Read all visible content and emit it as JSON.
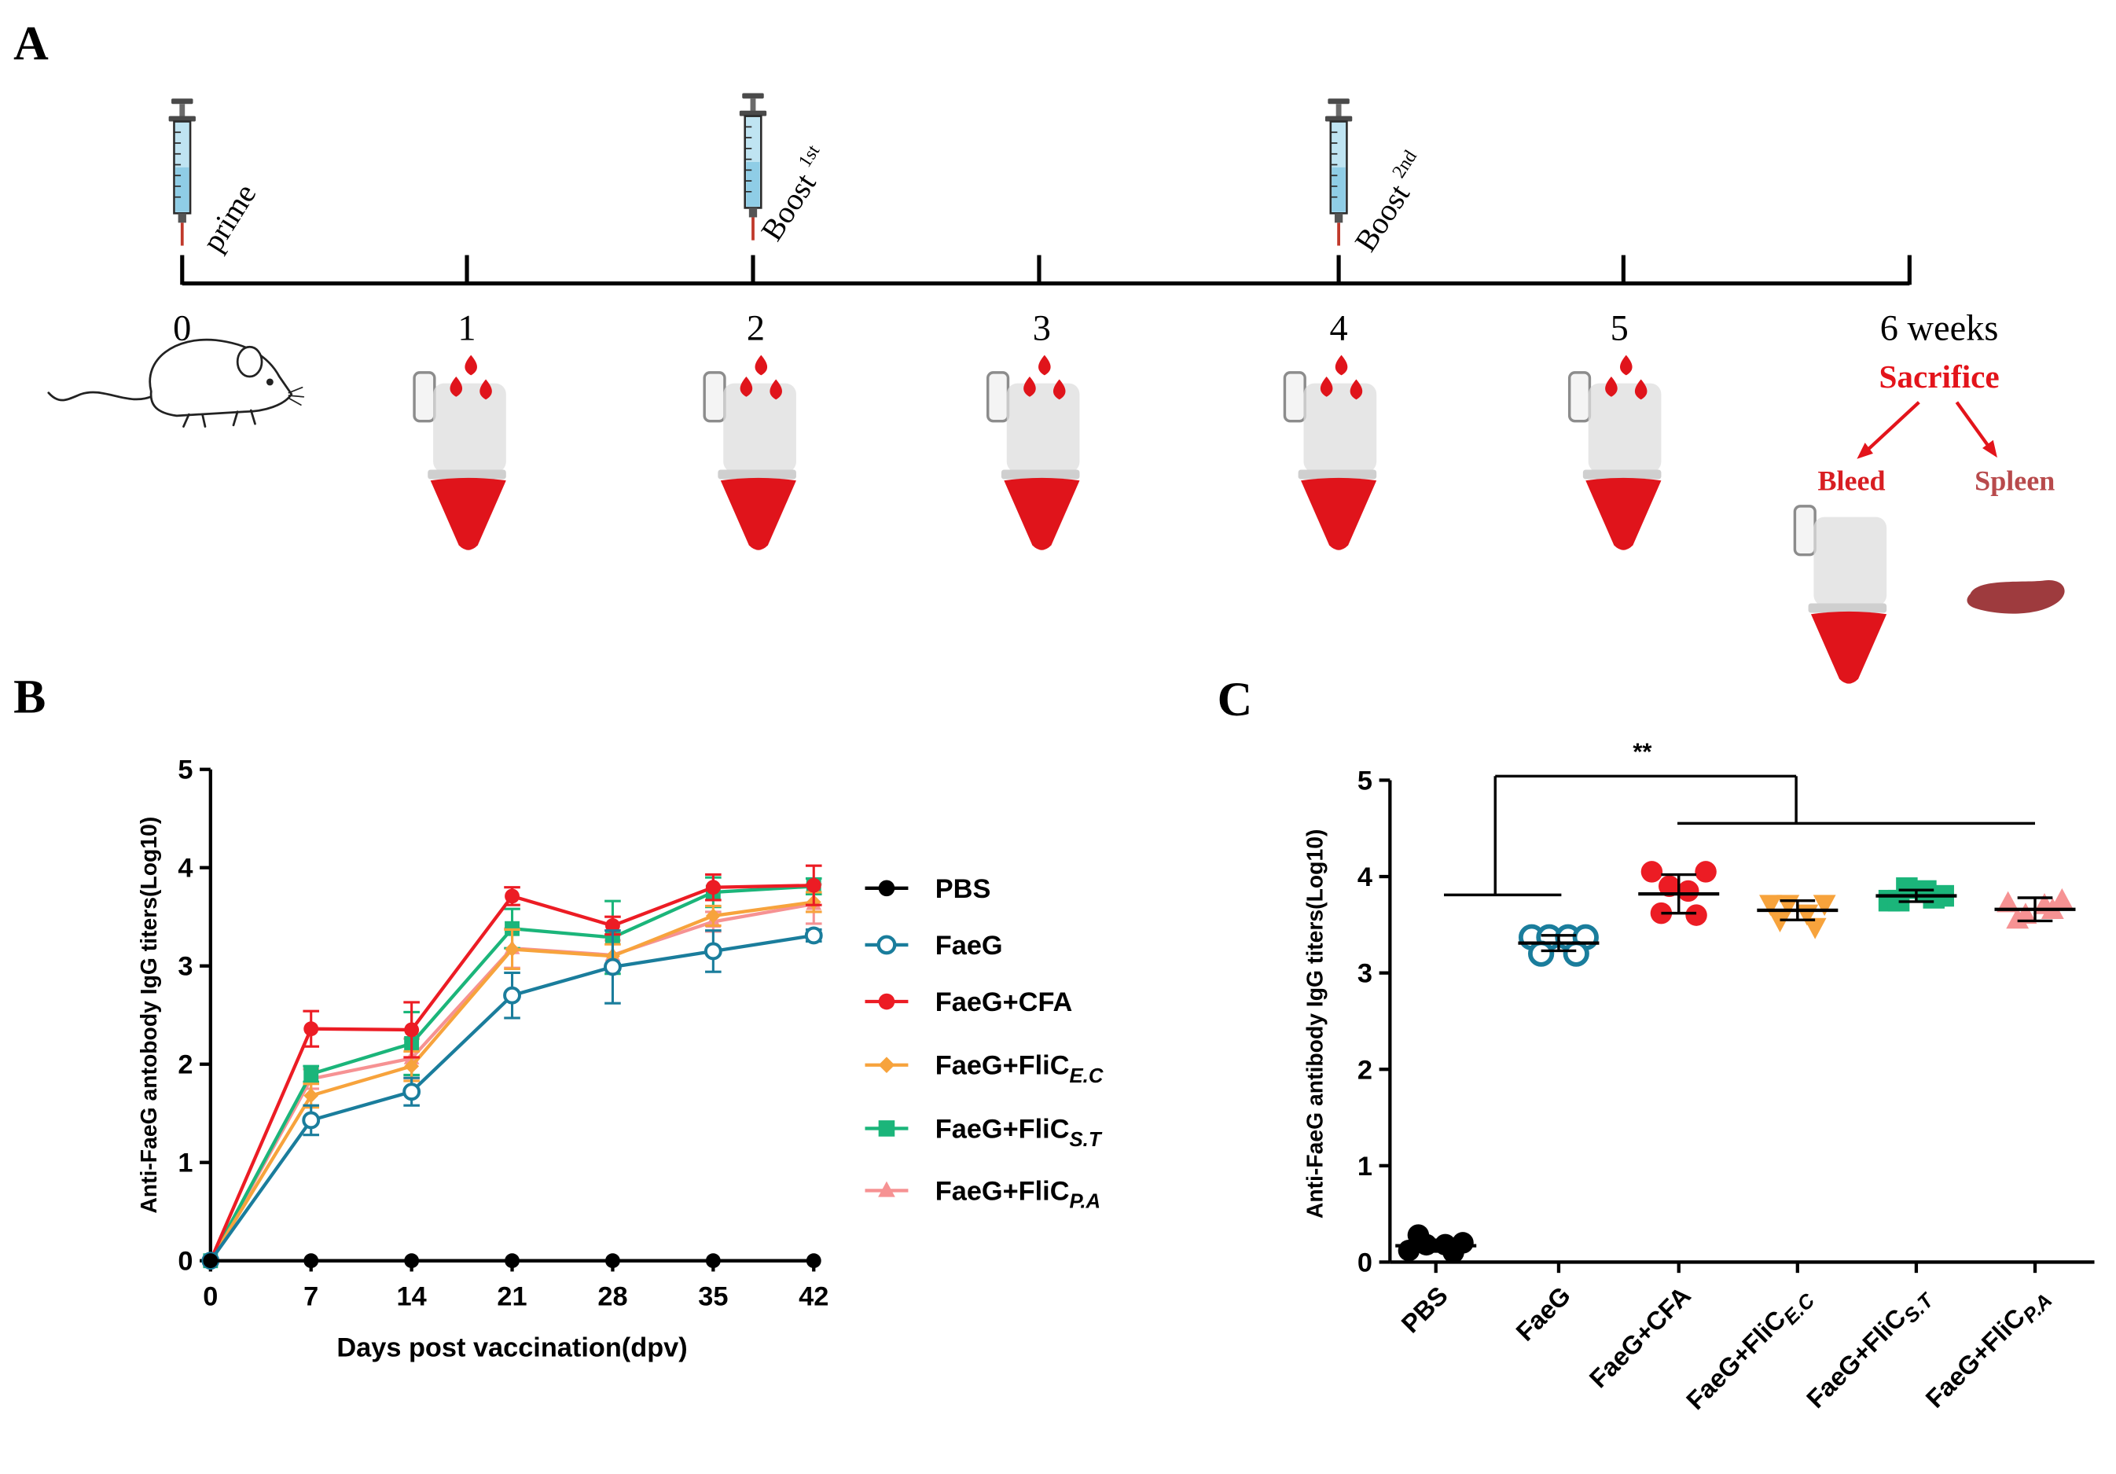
{
  "panel_labels": {
    "a": "A",
    "b": "B",
    "c": "C"
  },
  "timeline": {
    "ticks": [
      "0",
      "1",
      "2",
      "3",
      "4",
      "5",
      "6 weeks"
    ],
    "injections": [
      {
        "label": "prime"
      },
      {
        "label": "Boost",
        "sup": "1st"
      },
      {
        "label": "Boost",
        "sup": "2nd"
      }
    ],
    "sacrifice": "Sacrifice",
    "bleed": "Bleed",
    "spleen": "Spleen"
  },
  "colors": {
    "blood": "#e0141b",
    "sacrifice": "#e3141b",
    "bleed": "#d81e22",
    "spleen_text": "#b84a4c",
    "spleen": "#9e3b3e",
    "syringe_barrel": "#bfe4f2"
  },
  "chart_data": [
    {
      "type": "line",
      "panel": "B",
      "title": "",
      "xlabel": "Days post vaccination(dpv)",
      "ylabel": "Anti-FaeG antobody IgG titers(Log10)",
      "x": [
        0,
        7,
        14,
        21,
        28,
        35,
        42
      ],
      "xlim": [
        0,
        42
      ],
      "ylim": [
        0,
        5
      ],
      "yticks": [
        0,
        1,
        2,
        3,
        4,
        5
      ],
      "grid": false,
      "legend_position": "right",
      "series": [
        {
          "name": "PBS",
          "sub": "",
          "color": "#000000",
          "marker": "filled-circle",
          "values": [
            0,
            0,
            0,
            0,
            0,
            0,
            0
          ],
          "errors": [
            0,
            0,
            0,
            0,
            0,
            0,
            0
          ]
        },
        {
          "name": "FaeG",
          "sub": "",
          "color": "#1a7d9c",
          "marker": "open-circle",
          "values": [
            0,
            1.43,
            1.72,
            2.7,
            2.99,
            3.15,
            3.31
          ],
          "errors": [
            0,
            0.15,
            0.14,
            0.23,
            0.37,
            0.21,
            0.06
          ]
        },
        {
          "name": "FaeG+CFA",
          "sub": "",
          "color": "#ec1c24",
          "marker": "filled-circle",
          "values": [
            0,
            2.36,
            2.35,
            3.71,
            3.41,
            3.8,
            3.82
          ],
          "errors": [
            0,
            0.18,
            0.28,
            0.09,
            0.09,
            0.13,
            0.2
          ]
        },
        {
          "name": "FaeG+FliC",
          "sub": "E.C",
          "color": "#f7a33c",
          "marker": "diamond",
          "values": [
            0,
            1.68,
            1.98,
            3.17,
            3.1,
            3.51,
            3.65
          ],
          "errors": [
            0,
            0.12,
            0.15,
            0.2,
            0.12,
            0.1,
            0.1
          ]
        },
        {
          "name": "FaeG+FliC",
          "sub": "S.T",
          "color": "#1bb57a",
          "marker": "square",
          "values": [
            0,
            1.9,
            2.21,
            3.38,
            3.29,
            3.75,
            3.81
          ],
          "errors": [
            0,
            0.08,
            0.32,
            0.2,
            0.37,
            0.15,
            0.08
          ]
        },
        {
          "name": "FaeG+FliC",
          "sub": "P.A",
          "color": "#f69293",
          "marker": "triangle-up",
          "values": [
            0,
            1.85,
            2.06,
            3.18,
            3.11,
            3.45,
            3.63
          ],
          "errors": [
            0,
            0.1,
            0.2,
            0.2,
            0.15,
            0.1,
            0.2
          ]
        }
      ]
    },
    {
      "type": "scatter",
      "panel": "C",
      "title": "",
      "xlabel": "",
      "ylabel": "Anti-FaeG antibody IgG titers(Log10)",
      "ylim": [
        0,
        5
      ],
      "yticks": [
        0,
        1,
        2,
        3,
        4,
        5
      ],
      "grid": false,
      "categories": [
        {
          "name": "PBS",
          "sub": ""
        },
        {
          "name": "FaeG",
          "sub": ""
        },
        {
          "name": "FaeG+CFA",
          "sub": ""
        },
        {
          "name": "FaeG+FliC",
          "sub": "E.C"
        },
        {
          "name": "FaeG+FliC",
          "sub": "S.T"
        },
        {
          "name": "FaeG+FliC",
          "sub": "P.A"
        }
      ],
      "groups": [
        {
          "color": "#000000",
          "marker": "filled-circle",
          "points": [
            0.12,
            0.18,
            0.18,
            0.2,
            0.28,
            0.1
          ],
          "mean": 0.17,
          "sd": 0.06
        },
        {
          "color": "#1a7d9c",
          "marker": "open-circle",
          "points": [
            3.37,
            3.37,
            3.37,
            3.37,
            3.2,
            3.2
          ],
          "mean": 3.31,
          "sd": 0.08
        },
        {
          "color": "#ec1c24",
          "marker": "filled-circle",
          "points": [
            4.05,
            3.9,
            3.85,
            4.05,
            3.62,
            3.6
          ],
          "mean": 3.82,
          "sd": 0.2
        },
        {
          "color": "#f7a33c",
          "marker": "triangle-down",
          "points": [
            3.72,
            3.72,
            3.62,
            3.72,
            3.55,
            3.48
          ],
          "mean": 3.65,
          "sd": 0.1
        },
        {
          "color": "#1bb57a",
          "marker": "square",
          "points": [
            3.75,
            3.88,
            3.85,
            3.8,
            3.75,
            3.78
          ],
          "mean": 3.8,
          "sd": 0.06
        },
        {
          "color": "#f69293",
          "marker": "triangle-up",
          "points": [
            3.72,
            3.6,
            3.7,
            3.75,
            3.55,
            3.65
          ],
          "mean": 3.66,
          "sd": 0.12
        }
      ],
      "significance": {
        "label": "**"
      }
    }
  ]
}
